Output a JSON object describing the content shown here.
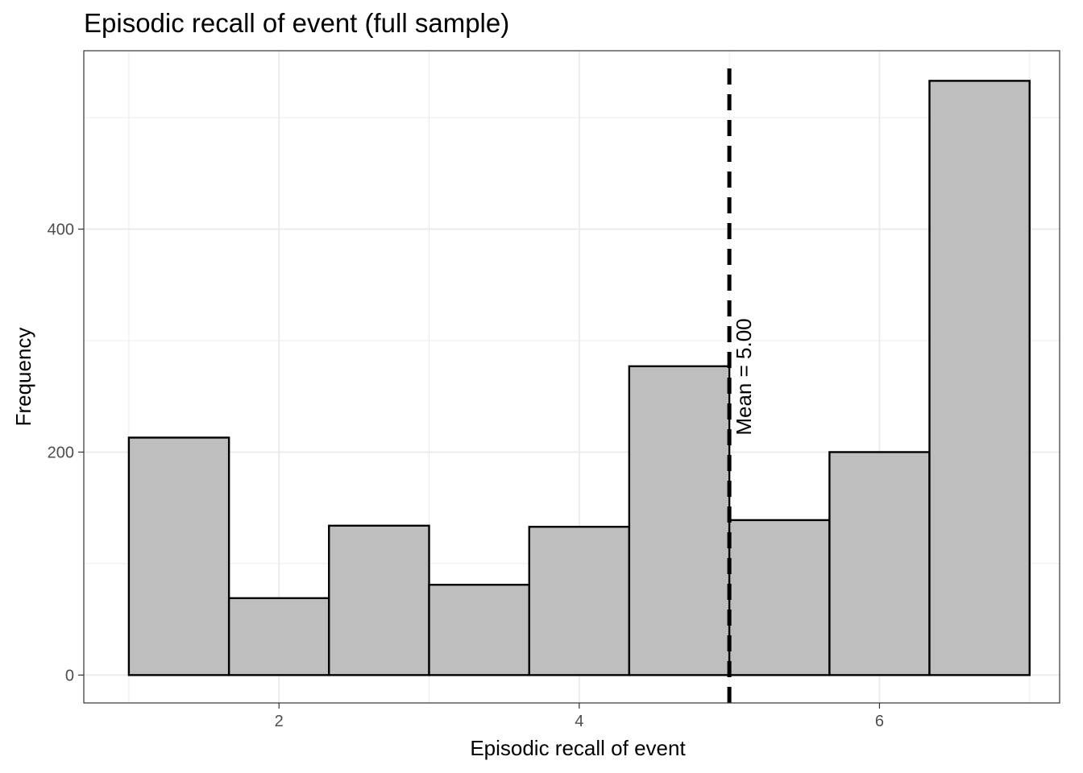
{
  "chart_data": {
    "type": "histogram",
    "title": "Episodic recall of event (full sample)",
    "xlabel": "Episodic recall of event",
    "ylabel": "Frequency",
    "xlim": [
      0.7,
      7.2
    ],
    "ylim": [
      -25,
      560
    ],
    "x_ticks": [
      2,
      4,
      6
    ],
    "y_ticks": [
      0,
      200,
      400
    ],
    "x_minor_grid": [
      1,
      3,
      5,
      7
    ],
    "y_minor_grid": [
      100,
      300,
      500
    ],
    "grid": true,
    "bins": [
      {
        "x0": 1.0,
        "x1": 1.667,
        "count": 213
      },
      {
        "x0": 1.667,
        "x1": 2.333,
        "count": 69
      },
      {
        "x0": 2.333,
        "x1": 3.0,
        "count": 134
      },
      {
        "x0": 3.0,
        "x1": 3.667,
        "count": 81
      },
      {
        "x0": 3.667,
        "x1": 4.333,
        "count": 133
      },
      {
        "x0": 4.333,
        "x1": 5.0,
        "count": 277
      },
      {
        "x0": 5.0,
        "x1": 5.667,
        "count": 139
      },
      {
        "x0": 5.667,
        "x1": 6.333,
        "count": 200
      },
      {
        "x0": 6.333,
        "x1": 7.0,
        "count": 533
      }
    ],
    "bar_fill": "#bebebe",
    "bar_stroke": "#000000",
    "mean_line": {
      "x": 5.0,
      "label": "Mean = 5.00",
      "style": "dashed",
      "color": "#000000"
    }
  }
}
